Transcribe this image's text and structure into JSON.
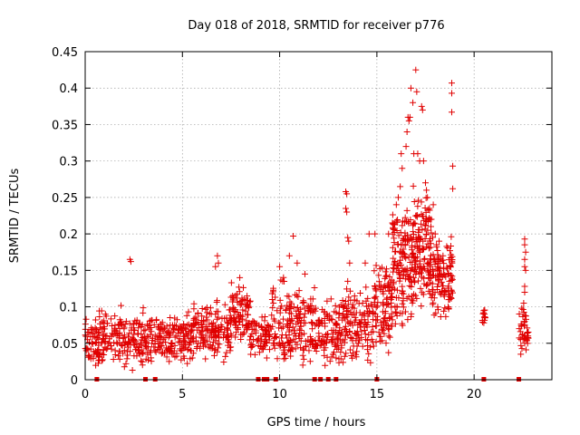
{
  "chart_data": {
    "type": "scatter",
    "title": "Day 018 of 2018, SRMTID for receiver p776",
    "xlabel": "GPS time / hours",
    "ylabel": "SRMTID / TECUs",
    "xlim": [
      0,
      24
    ],
    "ylim": [
      0,
      0.45
    ],
    "x_ticks": [
      0,
      5,
      10,
      15,
      20
    ],
    "x_tick_labels": [
      "0",
      "5",
      "10",
      "15",
      "20"
    ],
    "y_ticks": [
      0,
      0.05,
      0.1,
      0.15,
      0.2,
      0.25,
      0.3,
      0.35,
      0.4,
      0.45
    ],
    "y_tick_labels": [
      "0",
      "0.05",
      "0.1",
      "0.15",
      "0.2",
      "0.25",
      "0.3",
      "0.35",
      "0.4",
      "0.45"
    ],
    "grid": true,
    "marker": "plus",
    "series_color": "#e00000",
    "zero_marker_x": [
      0.6,
      3.1,
      3.6,
      8.9,
      9.2,
      9.35,
      9.8,
      11.8,
      12.1,
      12.5,
      12.9,
      15.0,
      20.5,
      22.3
    ],
    "segments": [
      {
        "x_start": 0.0,
        "x_end": 0.7,
        "base": 0.05,
        "spread": 0.03,
        "count": 60
      },
      {
        "x_start": 0.7,
        "x_end": 3.0,
        "base": 0.055,
        "spread": 0.035,
        "count": 170
      },
      {
        "x_start": 3.0,
        "x_end": 5.5,
        "base": 0.055,
        "spread": 0.03,
        "count": 190
      },
      {
        "x_start": 5.5,
        "x_end": 7.5,
        "base": 0.065,
        "spread": 0.035,
        "count": 160
      },
      {
        "x_start": 7.5,
        "x_end": 8.5,
        "base": 0.09,
        "spread": 0.035,
        "count": 90
      },
      {
        "x_start": 8.5,
        "x_end": 9.6,
        "base": 0.06,
        "spread": 0.025,
        "count": 70
      },
      {
        "x_start": 9.6,
        "x_end": 11.8,
        "base": 0.075,
        "spread": 0.05,
        "count": 180
      },
      {
        "x_start": 11.8,
        "x_end": 13.2,
        "base": 0.065,
        "spread": 0.04,
        "count": 110
      },
      {
        "x_start": 13.2,
        "x_end": 14.8,
        "base": 0.075,
        "spread": 0.045,
        "count": 130
      },
      {
        "x_start": 14.8,
        "x_end": 15.8,
        "base": 0.1,
        "spread": 0.05,
        "count": 110
      },
      {
        "x_start": 15.8,
        "x_end": 16.8,
        "base": 0.15,
        "spread": 0.07,
        "count": 140
      },
      {
        "x_start": 16.8,
        "x_end": 17.8,
        "base": 0.18,
        "spread": 0.07,
        "count": 150
      },
      {
        "x_start": 17.8,
        "x_end": 18.9,
        "base": 0.14,
        "spread": 0.05,
        "count": 120
      },
      {
        "x_start": 20.4,
        "x_end": 20.6,
        "base": 0.085,
        "spread": 0.015,
        "count": 10
      },
      {
        "x_start": 22.3,
        "x_end": 22.8,
        "base": 0.07,
        "spread": 0.025,
        "count": 40
      }
    ],
    "points": [
      [
        2.3,
        0.165
      ],
      [
        2.35,
        0.162
      ],
      [
        6.8,
        0.17
      ],
      [
        6.85,
        0.16
      ],
      [
        6.7,
        0.155
      ],
      [
        7.95,
        0.14
      ],
      [
        10.0,
        0.155
      ],
      [
        10.5,
        0.17
      ],
      [
        10.7,
        0.197
      ],
      [
        10.9,
        0.16
      ],
      [
        11.3,
        0.145
      ],
      [
        13.4,
        0.258
      ],
      [
        13.45,
        0.255
      ],
      [
        13.4,
        0.235
      ],
      [
        13.45,
        0.23
      ],
      [
        13.5,
        0.195
      ],
      [
        13.55,
        0.19
      ],
      [
        13.6,
        0.16
      ],
      [
        13.5,
        0.135
      ],
      [
        14.4,
        0.16
      ],
      [
        14.6,
        0.2
      ],
      [
        14.9,
        0.2
      ],
      [
        15.6,
        0.2
      ],
      [
        15.8,
        0.215
      ],
      [
        16.0,
        0.24
      ],
      [
        16.1,
        0.25
      ],
      [
        16.2,
        0.265
      ],
      [
        16.25,
        0.31
      ],
      [
        16.3,
        0.29
      ],
      [
        16.5,
        0.32
      ],
      [
        16.55,
        0.34
      ],
      [
        16.6,
        0.36
      ],
      [
        16.65,
        0.355
      ],
      [
        16.7,
        0.36
      ],
      [
        16.75,
        0.4
      ],
      [
        16.85,
        0.38
      ],
      [
        16.9,
        0.31
      ],
      [
        17.0,
        0.425
      ],
      [
        17.05,
        0.395
      ],
      [
        17.1,
        0.31
      ],
      [
        17.2,
        0.3
      ],
      [
        17.3,
        0.375
      ],
      [
        17.35,
        0.37
      ],
      [
        17.4,
        0.3
      ],
      [
        17.5,
        0.27
      ],
      [
        17.55,
        0.26
      ],
      [
        17.6,
        0.25
      ],
      [
        17.7,
        0.235
      ],
      [
        17.8,
        0.22
      ],
      [
        17.9,
        0.24
      ],
      [
        18.0,
        0.2
      ],
      [
        18.2,
        0.19
      ],
      [
        18.4,
        0.17
      ],
      [
        18.85,
        0.407
      ],
      [
        18.85,
        0.393
      ],
      [
        18.85,
        0.367
      ],
      [
        18.9,
        0.293
      ],
      [
        18.9,
        0.262
      ],
      [
        22.6,
        0.193
      ],
      [
        22.6,
        0.185
      ],
      [
        22.65,
        0.175
      ],
      [
        22.6,
        0.165
      ],
      [
        22.6,
        0.155
      ],
      [
        22.65,
        0.15
      ],
      [
        22.6,
        0.128
      ],
      [
        22.6,
        0.12
      ],
      [
        22.55,
        0.105
      ],
      [
        22.45,
        0.098
      ],
      [
        22.6,
        0.08
      ],
      [
        22.6,
        0.05
      ],
      [
        22.7,
        0.055
      ],
      [
        22.4,
        0.035
      ],
      [
        20.5,
        0.095
      ],
      [
        20.55,
        0.085
      ],
      [
        20.5,
        0.078
      ]
    ]
  }
}
